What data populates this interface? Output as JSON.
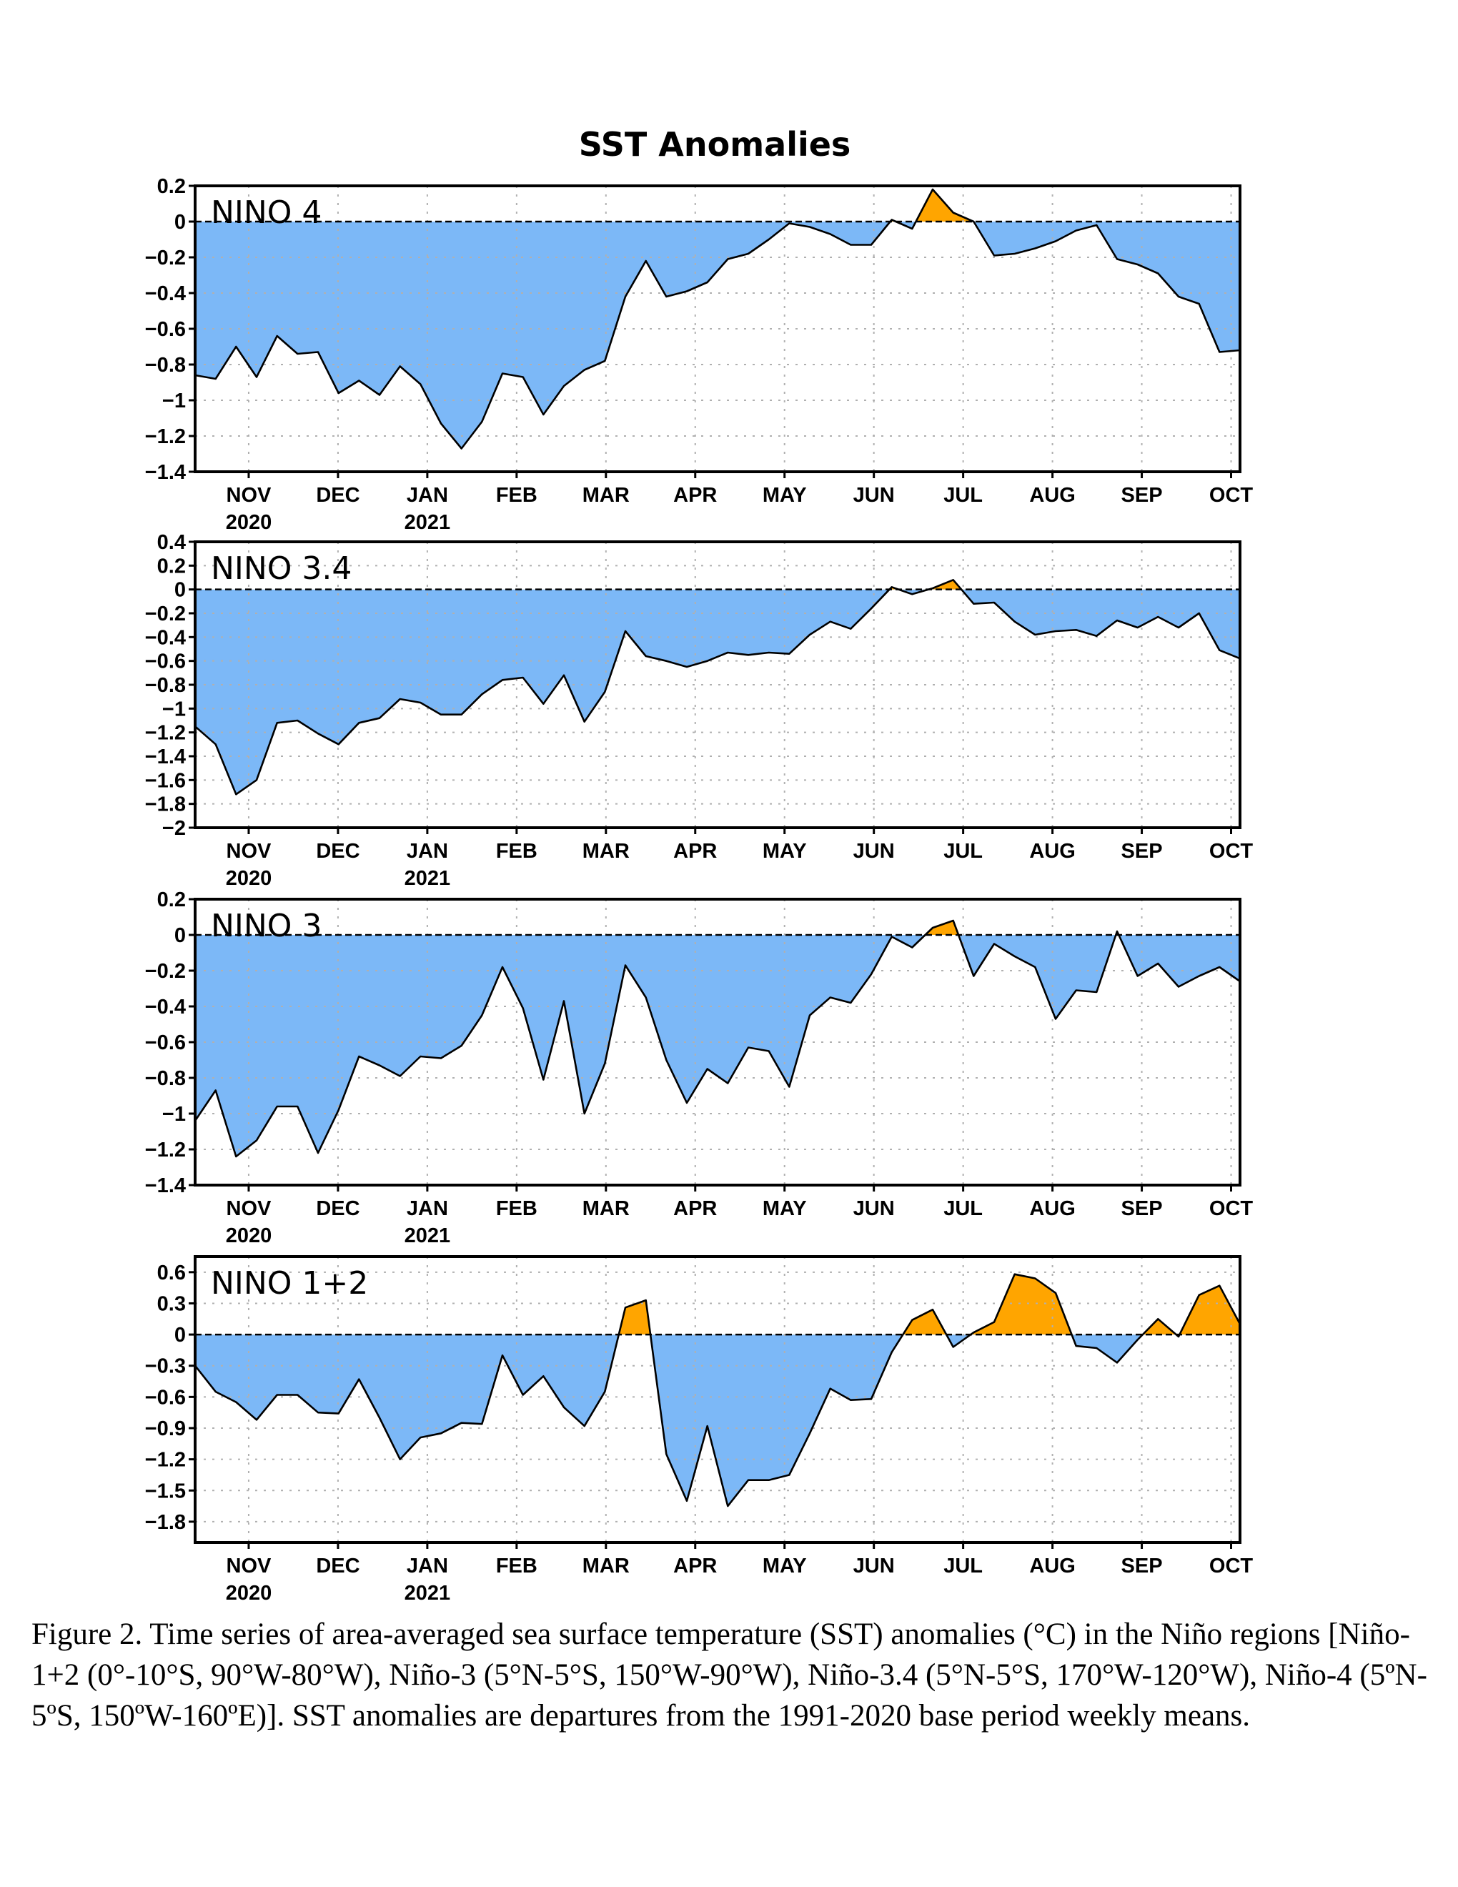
{
  "title": "SST Anomalies",
  "caption": "Figure 2. Time series of area-averaged sea surface temperature (SST) anomalies (°C) in the Niño regions [Niño-1+2 (0°-10°S, 90°W-80°W), Niño-3 (5°N-5°S, 150°W-90°W), Niño-3.4 (5°N-5°S, 170°W-120°W), Niño-4 (5ºN-5ºS, 150ºW-160ºE)]. SST anomalies are departures from the 1991-2020 base period weekly means.",
  "colors": {
    "negative": "#7cb8f7",
    "positive": "#ffa500",
    "line": "#000000",
    "grid": "#b0b0b0"
  },
  "x_axis": {
    "months": [
      "NOV",
      "DEC",
      "JAN",
      "FEB",
      "MAR",
      "APR",
      "MAY",
      "JUN",
      "JUL",
      "AUG",
      "SEP",
      "OCT"
    ],
    "years": [
      {
        "month_index": 0,
        "label": "2020"
      },
      {
        "month_index": 2,
        "label": "2021"
      }
    ],
    "time_range": [
      -0.6,
      11.1
    ]
  },
  "chart_data": [
    {
      "type": "area",
      "region": "NINO 4",
      "ylim": [
        -1.4,
        0.2
      ],
      "yticks": [
        0.2,
        0,
        -0.2,
        -0.4,
        -0.6,
        -0.8,
        -1,
        -1.2,
        -1.4
      ],
      "ytick_labels": [
        "0.2",
        "0",
        "−0.2",
        "−0.4",
        "−0.6",
        "−0.8",
        "−1",
        "−1.2",
        "−1.4"
      ],
      "y": [
        -0.86,
        -0.88,
        -0.7,
        -0.87,
        -0.64,
        -0.74,
        -0.73,
        -0.96,
        -0.89,
        -0.97,
        -0.81,
        -0.91,
        -1.13,
        -1.27,
        -1.12,
        -0.85,
        -0.87,
        -1.08,
        -0.92,
        -0.83,
        -0.78,
        -0.42,
        -0.22,
        -0.42,
        -0.39,
        -0.34,
        -0.21,
        -0.18,
        -0.1,
        -0.01,
        -0.03,
        -0.07,
        -0.13,
        -0.13,
        0.01,
        -0.04,
        0.18,
        0.05,
        0.0,
        -0.19,
        -0.18,
        -0.15,
        -0.11,
        -0.05,
        -0.02,
        -0.21,
        -0.24,
        -0.29,
        -0.42,
        -0.46,
        -0.73,
        -0.72
      ]
    },
    {
      "type": "area",
      "region": "NINO 3.4",
      "ylim": [
        -2,
        0.4
      ],
      "yticks": [
        0.4,
        0.2,
        0,
        -0.2,
        -0.4,
        -0.6,
        -0.8,
        -1,
        -1.2,
        -1.4,
        -1.6,
        -1.8,
        -2
      ],
      "ytick_labels": [
        "0.4",
        "0.2",
        "0",
        "−0.2",
        "−0.4",
        "−0.6",
        "−0.8",
        "−1",
        "−1.2",
        "−1.4",
        "−1.6",
        "−1.8",
        "−2"
      ],
      "y": [
        -1.15,
        -1.3,
        -1.72,
        -1.6,
        -1.12,
        -1.1,
        -1.21,
        -1.3,
        -1.12,
        -1.08,
        -0.92,
        -0.95,
        -1.05,
        -1.05,
        -0.88,
        -0.76,
        -0.74,
        -0.96,
        -0.72,
        -1.11,
        -0.86,
        -0.35,
        -0.56,
        -0.6,
        -0.65,
        -0.6,
        -0.53,
        -0.55,
        -0.53,
        -0.54,
        -0.38,
        -0.27,
        -0.33,
        -0.16,
        0.02,
        -0.04,
        0.01,
        0.08,
        -0.12,
        -0.11,
        -0.27,
        -0.38,
        -0.35,
        -0.34,
        -0.39,
        -0.26,
        -0.32,
        -0.23,
        -0.32,
        -0.2,
        -0.51,
        -0.58
      ]
    },
    {
      "type": "area",
      "region": "NINO 3",
      "ylim": [
        -1.4,
        0.2
      ],
      "yticks": [
        0.2,
        0,
        -0.2,
        -0.4,
        -0.6,
        -0.8,
        -1,
        -1.2,
        -1.4
      ],
      "ytick_labels": [
        "0.2",
        "0",
        "−0.2",
        "−0.4",
        "−0.6",
        "−0.8",
        "−1",
        "−1.2",
        "−1.4"
      ],
      "y": [
        -1.04,
        -0.87,
        -1.24,
        -1.15,
        -0.96,
        -0.96,
        -1.22,
        -0.98,
        -0.68,
        -0.73,
        -0.79,
        -0.68,
        -0.69,
        -0.62,
        -0.45,
        -0.18,
        -0.41,
        -0.81,
        -0.37,
        -1.0,
        -0.72,
        -0.17,
        -0.35,
        -0.7,
        -0.94,
        -0.75,
        -0.83,
        -0.63,
        -0.65,
        -0.85,
        -0.45,
        -0.35,
        -0.38,
        -0.22,
        -0.01,
        -0.07,
        0.04,
        0.08,
        -0.23,
        -0.05,
        -0.12,
        -0.18,
        -0.47,
        -0.31,
        -0.32,
        0.02,
        -0.23,
        -0.16,
        -0.29,
        -0.23,
        -0.18,
        -0.26
      ]
    },
    {
      "type": "area",
      "region": "NINO 1+2",
      "ylim": [
        -2.0,
        0.75
      ],
      "yticks": [
        0.6,
        0.3,
        0,
        -0.3,
        -0.6,
        -0.9,
        -1.2,
        -1.5,
        -1.8
      ],
      "ytick_labels": [
        "0.6",
        "0.3",
        "0",
        "−0.3",
        "−0.6",
        "−0.9",
        "−1.2",
        "−1.5",
        "−1.8"
      ],
      "y": [
        -0.3,
        -0.55,
        -0.65,
        -0.82,
        -0.58,
        -0.58,
        -0.75,
        -0.76,
        -0.43,
        -0.8,
        -1.2,
        -0.99,
        -0.95,
        -0.85,
        -0.86,
        -0.2,
        -0.58,
        -0.4,
        -0.7,
        -0.88,
        -0.55,
        0.26,
        0.33,
        -1.15,
        -1.6,
        -0.88,
        -1.65,
        -1.4,
        -1.4,
        -1.35,
        -0.95,
        -0.52,
        -0.63,
        -0.62,
        -0.17,
        0.14,
        0.24,
        -0.12,
        0.02,
        0.12,
        0.58,
        0.54,
        0.4,
        -0.11,
        -0.13,
        -0.27,
        -0.05,
        0.15,
        -0.02,
        0.38,
        0.47,
        0.1
      ]
    }
  ]
}
